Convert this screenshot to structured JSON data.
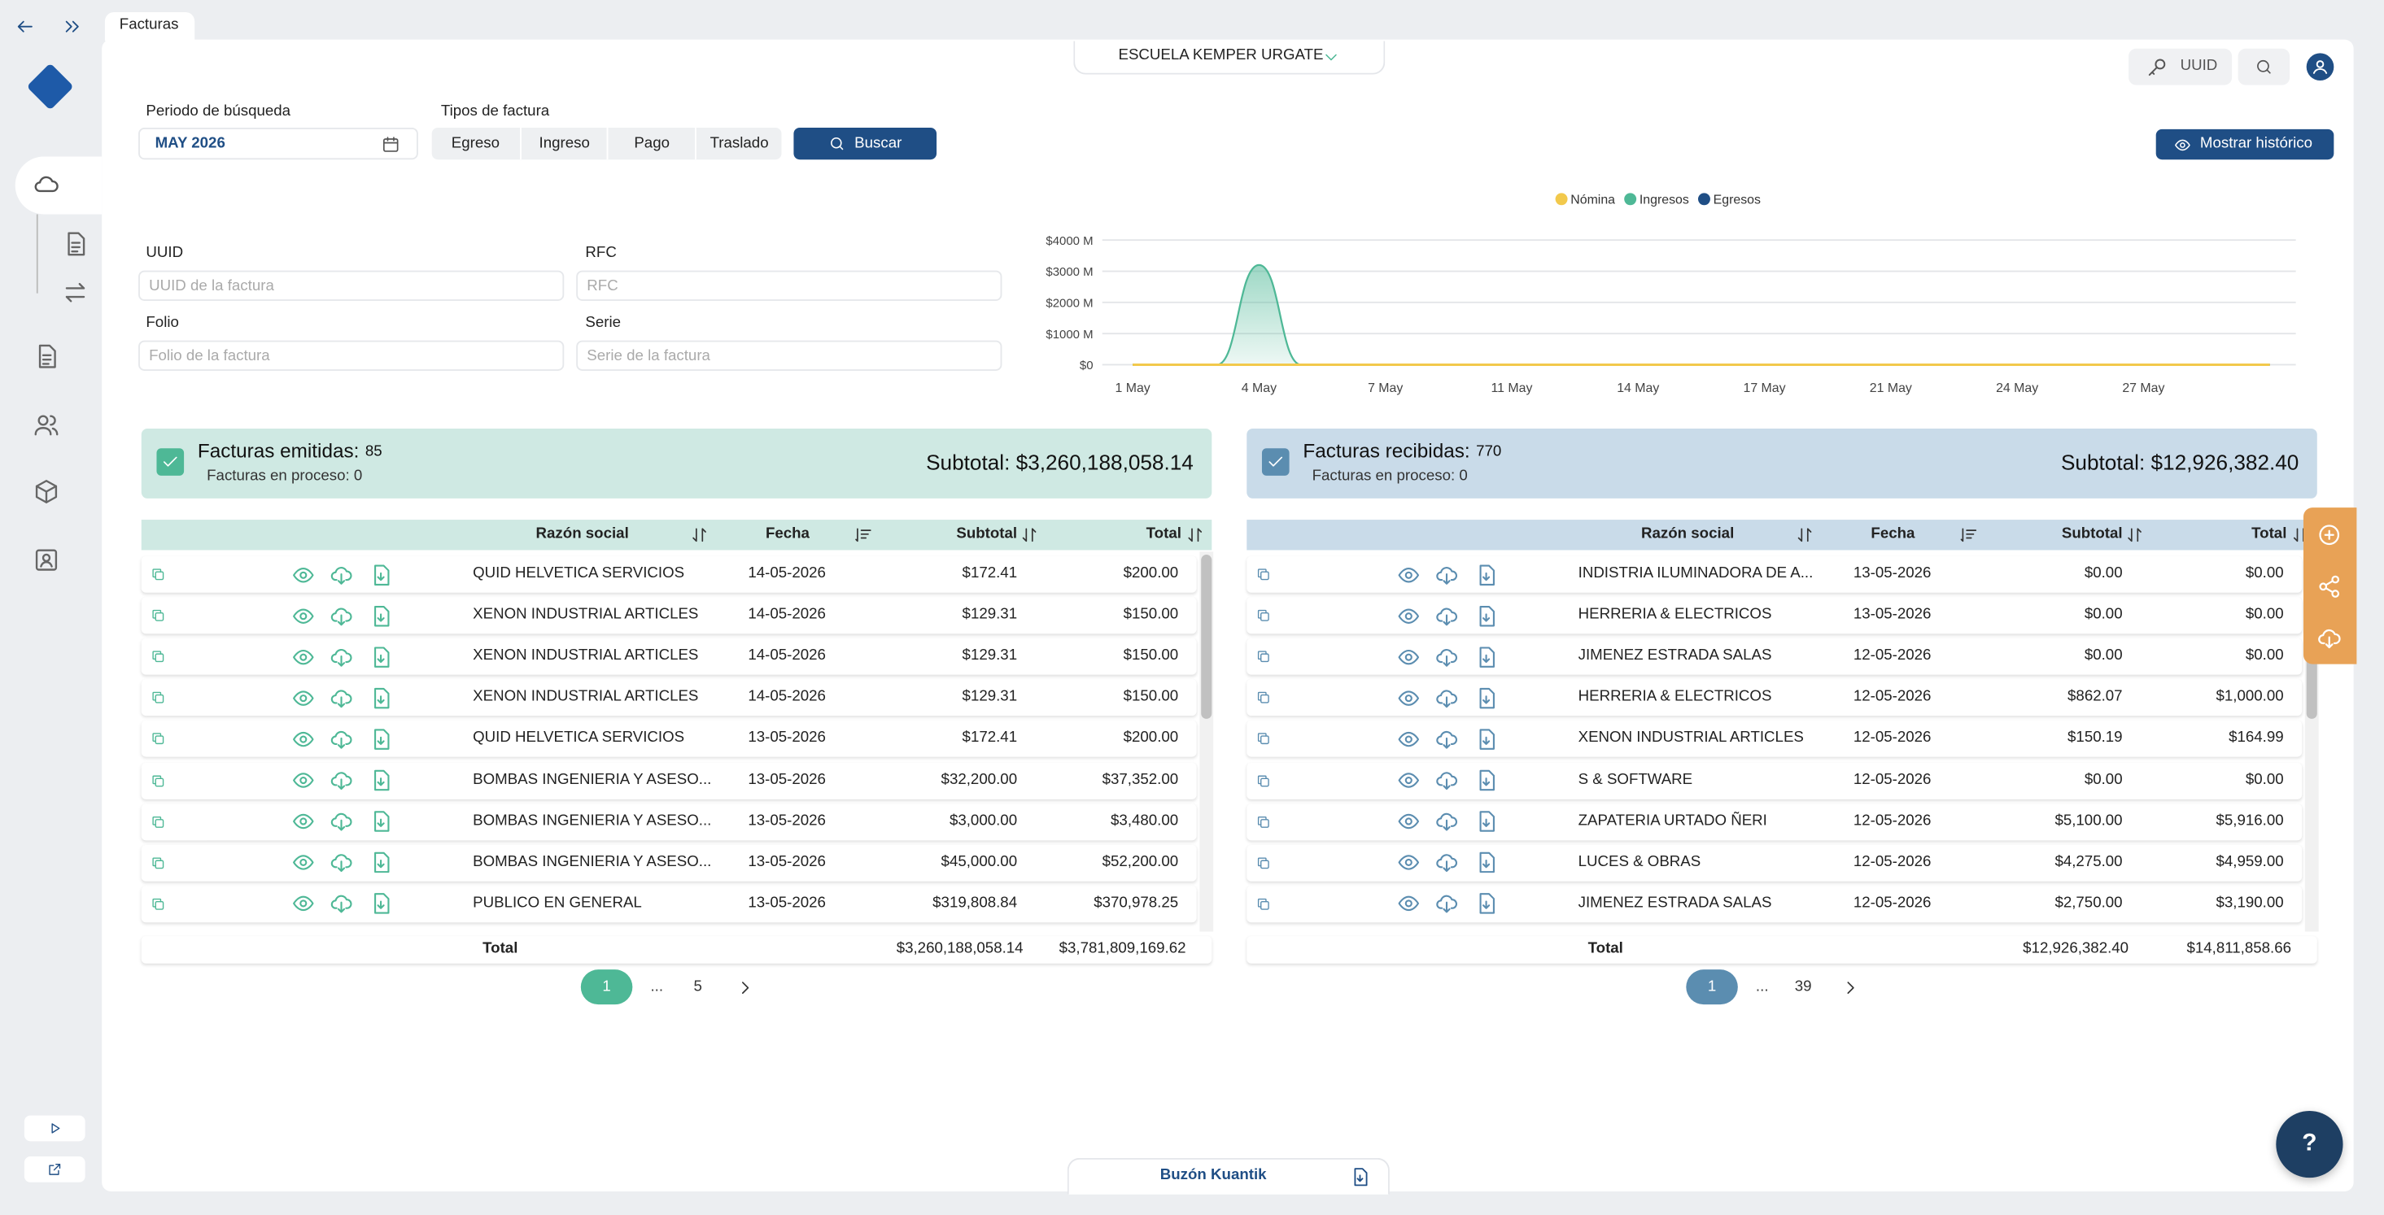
{
  "header": {
    "tab": "Facturas",
    "company": "ESCUELA KEMPER URGATE",
    "uuid_button": "UUID"
  },
  "filters": {
    "periodo_label": "Periodo de búsqueda",
    "periodo_value": "MAY 2026",
    "tipos_label": "Tipos de factura",
    "tipos": [
      "Egreso",
      "Ingreso",
      "Pago",
      "Traslado"
    ],
    "buscar": "Buscar",
    "historico": "Mostrar histórico",
    "fields": [
      {
        "label": "UUID",
        "placeholder": "UUID de la factura"
      },
      {
        "label": "RFC",
        "placeholder": "RFC"
      },
      {
        "label": "Folio",
        "placeholder": "Folio de la factura"
      },
      {
        "label": "Serie",
        "placeholder": "Serie de la factura"
      }
    ]
  },
  "chart": {
    "type": "area",
    "categories": [
      "1 May",
      null,
      null,
      "4 May",
      null,
      null,
      "7 May",
      null,
      null,
      "11 May",
      null,
      null,
      "14 May",
      null,
      null,
      "17 May",
      null,
      null,
      "21 May",
      null,
      null,
      "24 May",
      null,
      null,
      "27 May",
      null,
      null,
      null
    ],
    "series": [
      {
        "name": "Nómina",
        "color": "#f2c94c",
        "values": [
          0,
          0,
          0,
          0,
          0,
          0,
          0,
          0,
          0,
          0,
          0,
          0,
          0,
          0,
          0,
          0,
          0,
          0,
          0,
          0,
          0,
          0,
          0,
          0,
          0,
          0,
          0,
          0
        ]
      },
      {
        "name": "Ingresos",
        "color": "#4eb896",
        "values": [
          0,
          0,
          0,
          3200,
          0,
          0,
          0,
          0,
          0,
          0,
          0,
          0,
          0,
          0,
          0,
          0,
          0,
          0,
          0,
          0,
          0,
          0,
          0,
          0,
          0,
          0,
          0,
          0
        ]
      },
      {
        "name": "Egresos",
        "color": "#1f4e85",
        "values": [
          0,
          0,
          0,
          0,
          0,
          0,
          0,
          0,
          0,
          0,
          0,
          0,
          0,
          0,
          0,
          0,
          0,
          0,
          0,
          0,
          0,
          0,
          0,
          0,
          0,
          0,
          0,
          0
        ]
      }
    ],
    "ylim": [
      0,
      4000
    ],
    "yticks": [
      {
        "value": 0,
        "label": "$0"
      },
      {
        "value": 1000,
        "label": "$1000 M"
      },
      {
        "value": 2000,
        "label": "$2000 M"
      },
      {
        "value": 3000,
        "label": "$3000 M"
      },
      {
        "value": 4000,
        "label": "$4000 M"
      }
    ],
    "grid": true
  },
  "panels": [
    {
      "title": "Facturas emitidas:",
      "count": "85",
      "proceso": "Facturas en proceso: 0",
      "subtotal": "Subtotal: $3,260,188,058.14",
      "columns": [
        "Razón social",
        "Fecha",
        "Subtotal",
        "Total"
      ],
      "rows": [
        [
          "QUID HELVETICA SERVICIOS",
          "14-05-2026",
          "$172.41",
          "$200.00"
        ],
        [
          "XENON INDUSTRIAL ARTICLES",
          "14-05-2026",
          "$129.31",
          "$150.00"
        ],
        [
          "XENON INDUSTRIAL ARTICLES",
          "14-05-2026",
          "$129.31",
          "$150.00"
        ],
        [
          "XENON INDUSTRIAL ARTICLES",
          "14-05-2026",
          "$129.31",
          "$150.00"
        ],
        [
          "QUID HELVETICA SERVICIOS",
          "13-05-2026",
          "$172.41",
          "$200.00"
        ],
        [
          "BOMBAS INGENIERIA Y ASESO...",
          "13-05-2026",
          "$32,200.00",
          "$37,352.00"
        ],
        [
          "BOMBAS INGENIERIA Y ASESO...",
          "13-05-2026",
          "$3,000.00",
          "$3,480.00"
        ],
        [
          "BOMBAS INGENIERIA Y ASESO...",
          "13-05-2026",
          "$45,000.00",
          "$52,200.00"
        ],
        [
          "PUBLICO EN GENERAL",
          "13-05-2026",
          "$319,808.84",
          "$370,978.25"
        ]
      ],
      "total_label": "Total",
      "total_subtotal": "$3,260,188,058.14",
      "total_total": "$3,781,809,169.62",
      "pages": [
        "1",
        "...",
        "5"
      ]
    },
    {
      "title": "Facturas recibidas:",
      "count": "770",
      "proceso": "Facturas en proceso: 0",
      "subtotal": "Subtotal: $12,926,382.40",
      "columns": [
        "Razón social",
        "Fecha",
        "Subtotal",
        "Total"
      ],
      "rows": [
        [
          "INDISTRIA ILUMINADORA DE A...",
          "13-05-2026",
          "$0.00",
          "$0.00"
        ],
        [
          "HERRERIA & ELECTRICOS",
          "13-05-2026",
          "$0.00",
          "$0.00"
        ],
        [
          "JIMENEZ ESTRADA SALAS",
          "12-05-2026",
          "$0.00",
          "$0.00"
        ],
        [
          "HERRERIA & ELECTRICOS",
          "12-05-2026",
          "$862.07",
          "$1,000.00"
        ],
        [
          "XENON INDUSTRIAL ARTICLES",
          "12-05-2026",
          "$150.19",
          "$164.99"
        ],
        [
          "S & SOFTWARE",
          "12-05-2026",
          "$0.00",
          "$0.00"
        ],
        [
          "ZAPATERIA URTADO ÑERI",
          "12-05-2026",
          "$5,100.00",
          "$5,916.00"
        ],
        [
          "LUCES & OBRAS",
          "12-05-2026",
          "$4,275.00",
          "$4,959.00"
        ],
        [
          "JIMENEZ ESTRADA SALAS",
          "12-05-2026",
          "$2,750.00",
          "$3,190.00"
        ]
      ],
      "total_label": "Total",
      "total_subtotal": "$12,926,382.40",
      "total_total": "$14,811,858.66",
      "pages": [
        "1",
        "...",
        "39"
      ]
    }
  ],
  "footer": {
    "buzon": "Buzón Kuantik",
    "help": "?"
  }
}
